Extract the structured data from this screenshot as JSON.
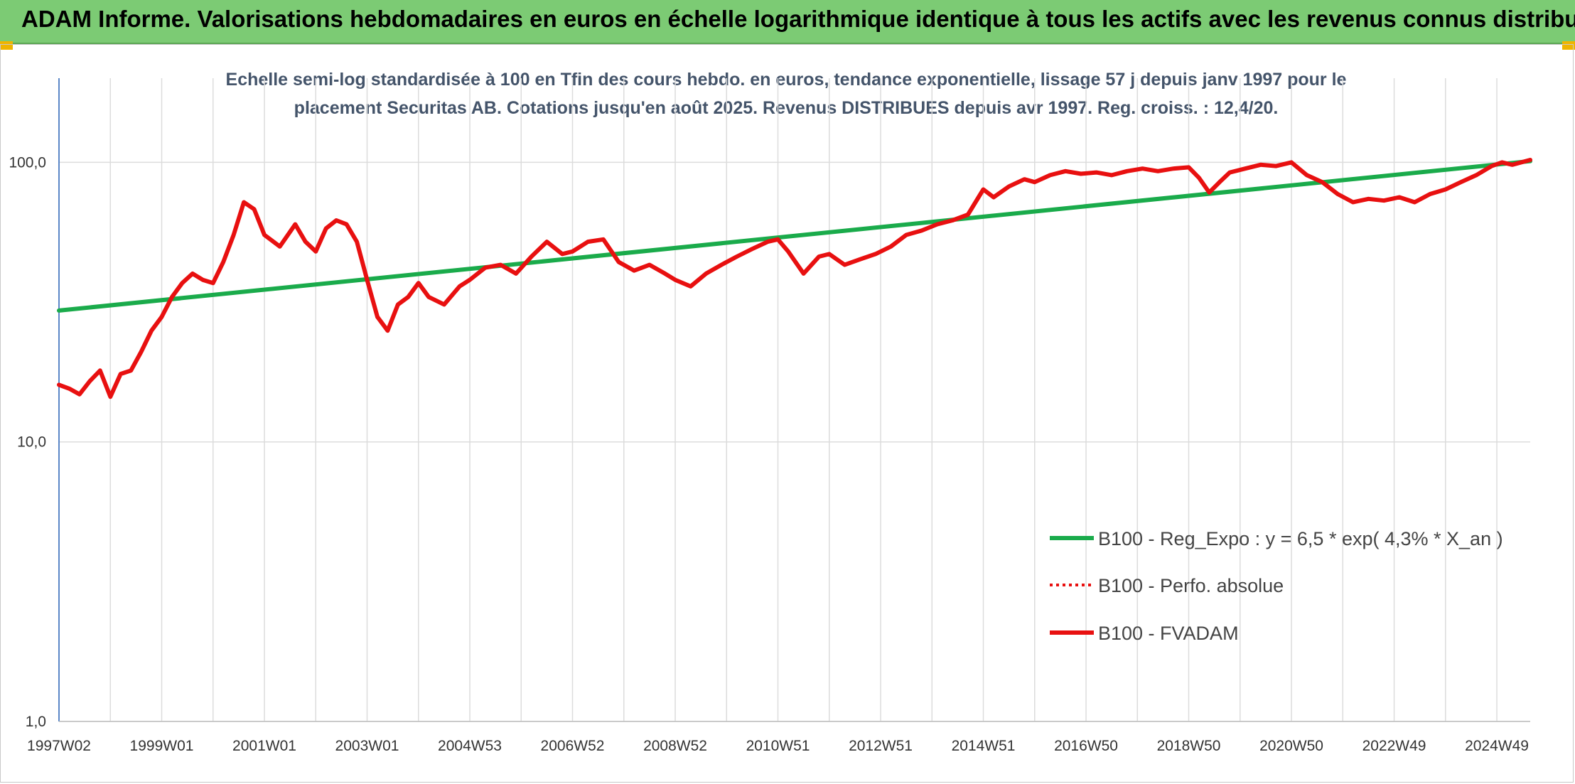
{
  "header": {
    "title": "ADAM Informe. Valorisations hebdomadaires en euros en échelle logarithmique identique à tous les actifs avec les revenus connus distribués",
    "bg_color": "#7ccb74",
    "corner_color": "#f0b400"
  },
  "chart_data": {
    "type": "line",
    "subtitle_line1": "Echelle semi-log standardisée à 100 en Tfin des cours hebdo. en euros, tendance exponentielle, lissage 57 j depuis janv 1997 pour le",
    "subtitle_line2": "placement Securitas AB. Cotations jusqu'en août 2025. Revenus DISTRIBUES depuis avr 1997. Reg. croiss. : 12,4/20.",
    "y_scale": "log",
    "ylim": [
      1,
      200
    ],
    "y_ticks": [
      {
        "value": 1,
        "label": "1,0"
      },
      {
        "value": 10,
        "label": "10,0"
      },
      {
        "value": 100,
        "label": "100,0"
      }
    ],
    "xlim": [
      1997.0,
      2025.65
    ],
    "x_ticks": [
      {
        "year": 1997.0,
        "label": "1997W02"
      },
      {
        "year": 1999.0,
        "label": "1999W01"
      },
      {
        "year": 2001.0,
        "label": "2001W01"
      },
      {
        "year": 2003.0,
        "label": "2003W01"
      },
      {
        "year": 2005.0,
        "label": "2004W53"
      },
      {
        "year": 2007.0,
        "label": "2006W52"
      },
      {
        "year": 2009.0,
        "label": "2008W52"
      },
      {
        "year": 2011.0,
        "label": "2010W51"
      },
      {
        "year": 2013.0,
        "label": "2012W51"
      },
      {
        "year": 2015.0,
        "label": "2014W51"
      },
      {
        "year": 2017.0,
        "label": "2016W50"
      },
      {
        "year": 2019.0,
        "label": "2018W50"
      },
      {
        "year": 2021.0,
        "label": "2020W50"
      },
      {
        "year": 2023.0,
        "label": "2022W49"
      },
      {
        "year": 2025.0,
        "label": "2024W49"
      }
    ],
    "grid": "vertical and horizontal major lines",
    "legend_position": "bottom-right",
    "series": [
      {
        "name": "B100 - Reg_Expo : y = 6,5 * exp( 4,3% *  X_an )",
        "color": "#1aab4b",
        "style": "solid",
        "x": [
          1997.0,
          2025.65
        ],
        "y": [
          29.5,
          101
        ]
      },
      {
        "name": "B100 - Perfo. absolue",
        "color": "#e81010",
        "style": "dotted",
        "x": [],
        "y": []
      },
      {
        "name": "B100 - FVADAM",
        "color": "#e81010",
        "style": "solid",
        "x": [
          1997.0,
          1997.2,
          1997.4,
          1997.6,
          1997.8,
          1998.0,
          1998.2,
          1998.4,
          1998.6,
          1998.8,
          1999.0,
          1999.2,
          1999.4,
          1999.6,
          1999.8,
          2000.0,
          2000.2,
          2000.4,
          2000.6,
          2000.8,
          2001.0,
          2001.3,
          2001.6,
          2001.8,
          2002.0,
          2002.2,
          2002.4,
          2002.6,
          2002.8,
          2003.0,
          2003.2,
          2003.4,
          2003.6,
          2003.8,
          2004.0,
          2004.2,
          2004.5,
          2004.8,
          2005.0,
          2005.3,
          2005.6,
          2005.9,
          2006.2,
          2006.5,
          2006.8,
          2007.0,
          2007.3,
          2007.6,
          2007.9,
          2008.2,
          2008.5,
          2008.8,
          2009.0,
          2009.3,
          2009.6,
          2009.9,
          2010.2,
          2010.5,
          2010.8,
          2011.0,
          2011.2,
          2011.5,
          2011.8,
          2012.0,
          2012.3,
          2012.6,
          2012.9,
          2013.2,
          2013.5,
          2013.8,
          2014.1,
          2014.4,
          2014.7,
          2015.0,
          2015.2,
          2015.5,
          2015.8,
          2016.0,
          2016.3,
          2016.6,
          2016.9,
          2017.2,
          2017.5,
          2017.8,
          2018.1,
          2018.4,
          2018.7,
          2019.0,
          2019.2,
          2019.4,
          2019.6,
          2019.8,
          2020.1,
          2020.4,
          2020.7,
          2021.0,
          2021.3,
          2021.6,
          2021.9,
          2022.2,
          2022.5,
          2022.8,
          2023.1,
          2023.4,
          2023.7,
          2024.0,
          2024.3,
          2024.6,
          2024.9,
          2025.1,
          2025.3,
          2025.65
        ],
        "y": [
          16,
          15.5,
          14.8,
          16.5,
          18,
          14.5,
          17.5,
          18,
          21,
          25,
          28,
          33,
          37,
          40,
          38,
          37,
          44,
          55,
          72,
          68,
          55,
          50,
          60,
          52,
          48,
          58,
          62,
          60,
          52,
          38,
          28,
          25,
          31,
          33,
          37,
          33,
          31,
          36,
          38,
          42,
          43,
          40,
          46,
          52,
          47,
          48,
          52,
          53,
          44,
          41,
          43,
          40,
          38,
          36,
          40,
          43,
          46,
          49,
          52,
          53,
          48,
          40,
          46,
          47,
          43,
          45,
          47,
          50,
          55,
          57,
          60,
          62,
          65,
          80,
          75,
          82,
          87,
          85,
          90,
          93,
          91,
          92,
          90,
          93,
          95,
          93,
          95,
          96,
          88,
          78,
          85,
          92,
          95,
          98,
          97,
          100,
          90,
          85,
          77,
          72,
          74,
          73,
          75,
          72,
          77,
          80,
          85,
          90,
          97,
          100,
          98,
          102
        ]
      }
    ]
  }
}
